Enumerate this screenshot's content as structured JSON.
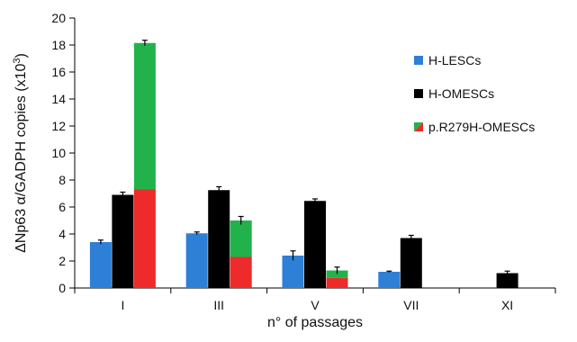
{
  "chart_data": {
    "type": "bar",
    "categories": [
      "I",
      "III",
      "V",
      "VII",
      "XI"
    ],
    "ylim": [
      0,
      20
    ],
    "yticks": [
      0,
      2,
      4,
      6,
      8,
      10,
      12,
      14,
      16,
      18,
      20
    ],
    "xlabel": "n° of passages",
    "ylabel": "ΔNp63 α/GADPH copies (x10",
    "ylabel_superscript": "3",
    "ylabel_close": ")",
    "series": [
      {
        "name": "H-LESCs",
        "color": "#2e7fd6",
        "values": [
          3.4,
          4.05,
          2.4,
          1.2,
          null
        ],
        "errors": [
          0.15,
          0.1,
          0.35,
          0.05,
          null
        ]
      },
      {
        "name": "H-OMESCs",
        "color": "#000000",
        "values": [
          6.9,
          7.25,
          6.45,
          3.7,
          1.1
        ],
        "errors": [
          0.2,
          0.25,
          0.15,
          0.2,
          0.15
        ]
      },
      {
        "name": "p.R279H-OMESCs",
        "color_bottom": "#ee2a2a",
        "color_top": "#22b24c",
        "values": [
          18.15,
          5.0,
          1.3,
          null,
          null
        ],
        "red_part": [
          7.3,
          2.3,
          0.75,
          null,
          null
        ],
        "errors": [
          0.2,
          0.3,
          0.25,
          null,
          null
        ]
      }
    ],
    "legend_position": "right"
  }
}
